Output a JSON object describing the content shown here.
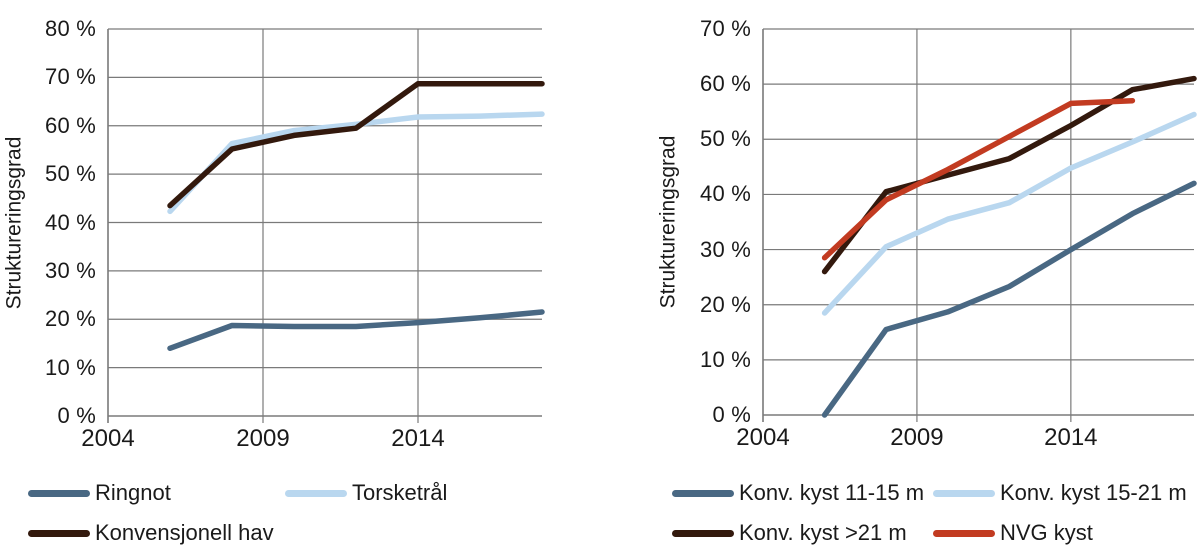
{
  "background": "#ffffff",
  "text_color": "#1a1a1a",
  "grid_color": "#7a7a7a",
  "chart_data": [
    {
      "id": "left",
      "type": "line",
      "title": "",
      "xlabel": "",
      "ylabel": "Struktureringsgrad",
      "xlim": [
        2004,
        2018
      ],
      "ylim": [
        0,
        80
      ],
      "ytick_step": 10,
      "ytick_suffix": " %",
      "xticks": [
        2004,
        2009,
        2014
      ],
      "grid": true,
      "legend_position": "bottom",
      "x": [
        2006,
        2008,
        2010,
        2012,
        2014,
        2016,
        2018
      ],
      "series": [
        {
          "name": "Ringnot",
          "color": "#496883",
          "values": [
            14,
            18.7,
            18.5,
            18.5,
            19.3,
            20.3,
            21.5
          ]
        },
        {
          "name": "Torsketrål",
          "color": "#b9d7ef",
          "values": [
            42.3,
            56.3,
            59,
            60.3,
            61.8,
            62,
            62.4
          ]
        },
        {
          "name": "Konvensjonell hav",
          "color": "#33190d",
          "values": [
            43.5,
            55.2,
            58,
            59.5,
            68.7,
            68.7,
            68.7
          ]
        }
      ]
    },
    {
      "id": "right",
      "type": "line",
      "title": "",
      "xlabel": "",
      "ylabel": "Struktureringsgrad",
      "xlim": [
        2004,
        2018
      ],
      "ylim": [
        0,
        70
      ],
      "ytick_step": 10,
      "ytick_suffix": " %",
      "xticks": [
        2004,
        2009,
        2014
      ],
      "grid": true,
      "legend_position": "bottom",
      "x": [
        2006,
        2008,
        2010,
        2012,
        2014,
        2016,
        2018
      ],
      "series": [
        {
          "name": "Konv. kyst 11-15 m",
          "color": "#496883",
          "values": [
            0,
            15.5,
            18.7,
            23.3,
            30,
            36.5,
            42
          ]
        },
        {
          "name": "Konv. kyst 15-21 m",
          "color": "#b9d7ef",
          "values": [
            18.5,
            30.5,
            35.5,
            38.5,
            44.8,
            49.5,
            54.5
          ]
        },
        {
          "name": "Konv. kyst >21 m",
          "color": "#33190d",
          "values": [
            26,
            40.5,
            43.5,
            46.5,
            52.5,
            59,
            61
          ]
        },
        {
          "name": "NVG kyst",
          "color": "#c23b21",
          "values": [
            28.5,
            39,
            44.5,
            50.5,
            56.5,
            57,
            null
          ]
        }
      ]
    }
  ]
}
